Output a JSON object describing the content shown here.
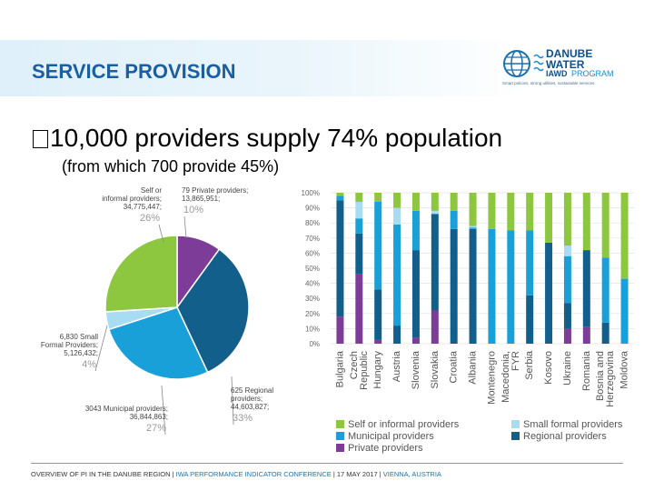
{
  "slide": {
    "title": "SERVICE PROVISION",
    "bullet": "10,000 providers supply 74% population",
    "sub": "(from which 700 provide 45%)",
    "logo": {
      "line1": "DANUBE",
      "line2": "WATER",
      "line3a": "IAWD",
      "line3b": "PROGRAM",
      "tagline": "Smart policies, strong utilities, sustainable services"
    },
    "footer": {
      "part1": "OVERVIEW OF PI IN THE DANUBE REGION | ",
      "part2": "IWA PERFORMANCE INDICATOR CONFERENCE",
      "part3": " | 17 MAY 2017 | ",
      "part4": "VIENNA, AUSTRIA"
    }
  },
  "colors": {
    "self": "#8dc63f",
    "small": "#a8dcf3",
    "municipal": "#1aa0d8",
    "regional": "#135f8c",
    "private": "#7d3c98"
  },
  "chart_data": [
    {
      "type": "pie",
      "slices": [
        {
          "key": "private",
          "label_lines": [
            "79 Private providers;",
            "13,865,951;"
          ],
          "pct_label": "10%",
          "value": 10
        },
        {
          "key": "regional",
          "label_lines": [
            "625 Regional",
            "providers;",
            "44,603,827;"
          ],
          "pct_label": "33%",
          "value": 33
        },
        {
          "key": "municipal",
          "label_lines": [
            "3043 Municipal providers;",
            "36,844,863;"
          ],
          "pct_label": "27%",
          "value": 27
        },
        {
          "key": "small",
          "label_lines": [
            "6,830 Small",
            "Formal Providers;",
            "5,126,432;"
          ],
          "pct_label": "4%",
          "value": 4
        },
        {
          "key": "self",
          "label_lines": [
            "Self or",
            "informal providers;",
            "34,775,447;"
          ],
          "pct_label": "26%",
          "value": 26
        }
      ]
    },
    {
      "type": "bar",
      "stacked": true,
      "categories": [
        "Bulgaria",
        "Czech Republic",
        "Hungary",
        "Austria",
        "Slovenia",
        "Slovakia",
        "Croatia",
        "Albania",
        "Montenegro",
        "Macedonia, FYR",
        "Serbia",
        "Kosovo",
        "Ukraine",
        "Romania",
        "Bosnia and Herzegovina",
        "Moldova"
      ],
      "series": [
        {
          "key": "private",
          "name": "Private providers",
          "values": [
            18,
            46,
            3,
            0,
            4,
            22,
            0,
            0,
            0,
            0,
            0,
            0,
            10,
            11,
            0,
            0
          ]
        },
        {
          "key": "regional",
          "name": "Regional providers",
          "values": [
            77,
            27,
            33,
            12,
            58,
            64,
            76,
            76,
            0,
            0,
            32,
            67,
            17,
            51,
            14,
            0
          ]
        },
        {
          "key": "municipal",
          "name": "Municipal providers",
          "values": [
            3,
            10,
            58,
            67,
            26,
            0,
            12,
            1,
            76,
            75,
            43,
            0,
            31,
            0,
            43,
            43
          ]
        },
        {
          "key": "small",
          "name": "Small formal providers",
          "values": [
            0,
            11,
            0,
            11,
            0,
            2,
            0,
            1,
            0,
            0,
            0,
            0,
            7,
            0,
            0,
            0
          ]
        },
        {
          "key": "self",
          "name": "Self or informal providers",
          "values": [
            2,
            6,
            6,
            10,
            12,
            12,
            12,
            22,
            24,
            25,
            25,
            33,
            35,
            38,
            43,
            57
          ]
        }
      ],
      "y_ticks": [
        "0%",
        "10%",
        "20%",
        "30%",
        "40%",
        "50%",
        "60%",
        "70%",
        "80%",
        "90%",
        "100%"
      ],
      "ylim": [
        0,
        100
      ],
      "legend": [
        {
          "key": "self",
          "label": "Self or informal providers"
        },
        {
          "key": "small",
          "label": "Small formal providers"
        },
        {
          "key": "municipal",
          "label": "Municipal providers"
        },
        {
          "key": "regional",
          "label": "Regional providers"
        },
        {
          "key": "private",
          "label": "Private providers"
        }
      ]
    }
  ]
}
